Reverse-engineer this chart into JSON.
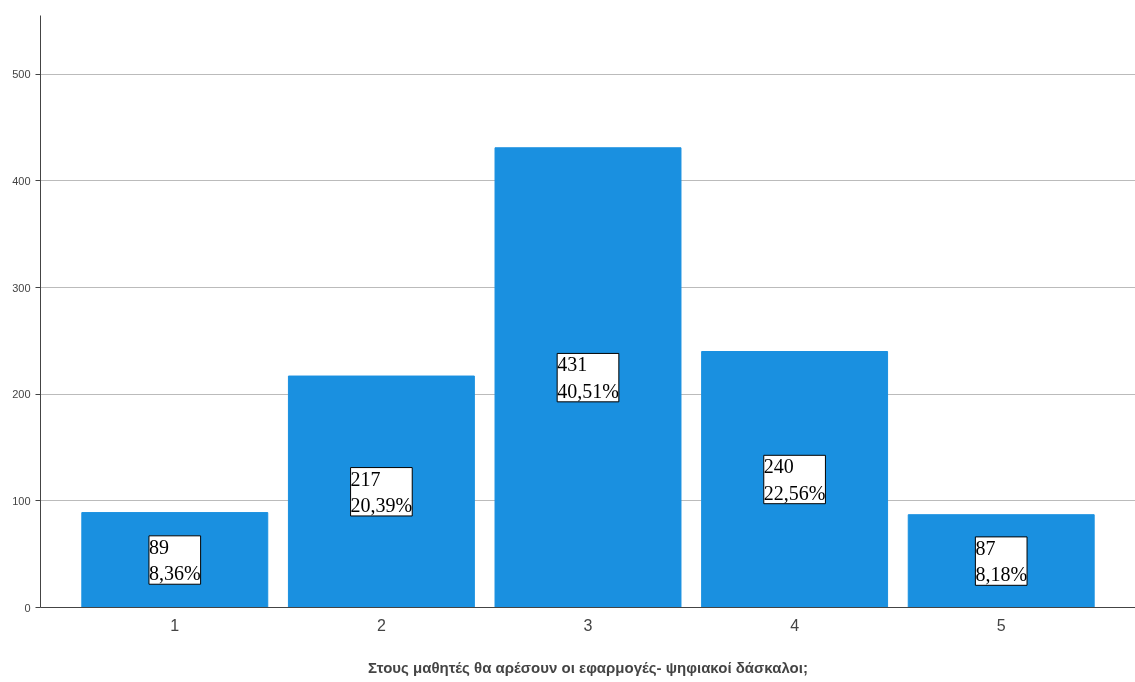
{
  "chart_data": {
    "type": "bar",
    "xlabel": "Στους μαθητές θα αρέσουν οι εφαρμογές- ψηφιακοί δάσκαλοι;",
    "categories": [
      "1",
      "2",
      "3",
      "4",
      "5"
    ],
    "values": [
      89,
      217,
      431,
      240,
      87
    ],
    "color": "#1a90e0",
    "value_labels": [
      "89\n8,36%",
      "217\n20,39%",
      "431\n40,51%",
      "240\n22,56%",
      "87\n8,18%"
    ],
    "ylim": [
      0,
      555
    ],
    "yticks": [
      0,
      100,
      200,
      300,
      400,
      500
    ],
    "grid": "y"
  }
}
